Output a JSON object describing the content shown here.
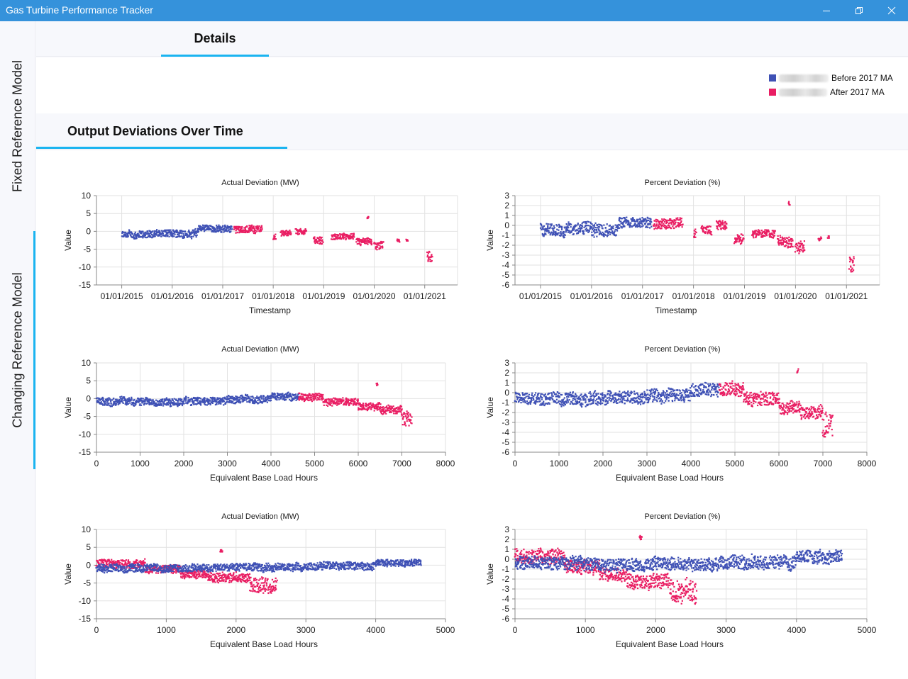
{
  "window": {
    "title": "Gas Turbine Performance Tracker",
    "controls": [
      "minimize",
      "restore",
      "close"
    ]
  },
  "left_nav": {
    "items": [
      {
        "label": "Fixed Reference Model",
        "selected": false
      },
      {
        "label": "Changing Reference Model",
        "selected": true
      }
    ]
  },
  "top_tabs": [
    {
      "label": "Details",
      "selected": true
    }
  ],
  "legend": {
    "items": [
      {
        "label": "Before 2017 MA",
        "color": "#3f51b5",
        "name_redacted": true
      },
      {
        "label": "After 2017 MA",
        "color": "#e91e63",
        "name_redacted": true
      }
    ]
  },
  "section": {
    "title": "Output Deviations Over Time"
  },
  "colors": {
    "before": "#3f51b5",
    "after": "#e91e63",
    "accent": "#1ab4f0",
    "titlebar": "#3592db"
  },
  "chart_data": [
    {
      "id": "actual-time",
      "type": "scatter",
      "title": "Actual Deviation (MW)",
      "xlabel": "Timestamp",
      "ylabel": "Value",
      "x_kind": "date",
      "xlim": [
        2014.5,
        2021.65
      ],
      "ylim": [
        -15,
        10
      ],
      "yticks": [
        10,
        5,
        0,
        -5,
        -10,
        -15
      ],
      "xticks": [
        2015,
        2016,
        2017,
        2018,
        2019,
        2020,
        2021
      ],
      "xtick_labels": [
        "01/01/2015",
        "01/01/2016",
        "01/01/2017",
        "01/01/2018",
        "01/01/2019",
        "01/01/2020",
        "01/01/2021"
      ],
      "grid": true,
      "series": [
        {
          "name": "Before 2017 MA",
          "color": "#3f51b5",
          "segments": [
            {
              "x0": 2015.0,
              "x1": 2015.5,
              "mid": -1.0,
              "spread": 2.0
            },
            {
              "x0": 2015.5,
              "x1": 2016.0,
              "mid": -0.6,
              "spread": 2.0
            },
            {
              "x0": 2016.0,
              "x1": 2016.5,
              "mid": -0.6,
              "spread": 2.2
            },
            {
              "x0": 2016.5,
              "x1": 2017.18,
              "mid": 0.8,
              "spread": 1.8
            }
          ]
        },
        {
          "name": "After 2017 MA",
          "color": "#e91e63",
          "segments": [
            {
              "x0": 2017.22,
              "x1": 2017.78,
              "mid": 0.6,
              "spread": 1.8
            },
            {
              "x0": 2018.0,
              "x1": 2018.05,
              "mid": -1.5,
              "spread": 1.8
            },
            {
              "x0": 2018.15,
              "x1": 2018.35,
              "mid": -0.6,
              "spread": 1.5
            },
            {
              "x0": 2018.45,
              "x1": 2018.65,
              "mid": 0.0,
              "spread": 1.5
            },
            {
              "x0": 2018.8,
              "x1": 2018.98,
              "mid": -2.5,
              "spread": 1.8
            },
            {
              "x0": 2019.15,
              "x1": 2019.6,
              "mid": -1.5,
              "spread": 1.5
            },
            {
              "x0": 2019.65,
              "x1": 2019.95,
              "mid": -3.0,
              "spread": 1.8
            },
            {
              "x0": 2020.0,
              "x1": 2020.18,
              "mid": -4.0,
              "spread": 2.0
            },
            {
              "x0": 2020.45,
              "x1": 2020.5,
              "mid": -2.6,
              "spread": 0.8
            },
            {
              "x0": 2020.63,
              "x1": 2020.66,
              "mid": -2.5,
              "spread": 0.5
            },
            {
              "x0": 2021.05,
              "x1": 2021.15,
              "mid": -7.0,
              "spread": 3.0
            },
            {
              "x0": 2019.86,
              "x1": 2019.88,
              "mid": 4.0,
              "spread": 0.8
            }
          ]
        }
      ]
    },
    {
      "id": "percent-time",
      "type": "scatter",
      "title": "Percent Deviation (%)",
      "xlabel": "Timestamp",
      "ylabel": "Value",
      "x_kind": "date",
      "xlim": [
        2014.5,
        2021.65
      ],
      "ylim": [
        -6,
        3
      ],
      "yticks": [
        3,
        2,
        1,
        0,
        -1,
        -2,
        -3,
        -4,
        -5,
        -6
      ],
      "xticks": [
        2015,
        2016,
        2017,
        2018,
        2019,
        2020,
        2021
      ],
      "xtick_labels": [
        "01/01/2015",
        "01/01/2016",
        "01/01/2017",
        "01/01/2018",
        "01/01/2019",
        "01/01/2020",
        "01/01/2021"
      ],
      "grid": true,
      "series": [
        {
          "name": "Before 2017 MA",
          "color": "#3f51b5",
          "segments": [
            {
              "x0": 2015.0,
              "x1": 2015.5,
              "mid": -0.5,
              "spread": 1.2
            },
            {
              "x0": 2015.5,
              "x1": 2016.0,
              "mid": -0.3,
              "spread": 1.2
            },
            {
              "x0": 2016.0,
              "x1": 2016.5,
              "mid": -0.5,
              "spread": 1.3
            },
            {
              "x0": 2016.5,
              "x1": 2017.18,
              "mid": 0.3,
              "spread": 1.0
            }
          ]
        },
        {
          "name": "After 2017 MA",
          "color": "#e91e63",
          "segments": [
            {
              "x0": 2017.22,
              "x1": 2017.78,
              "mid": 0.2,
              "spread": 1.0
            },
            {
              "x0": 2018.0,
              "x1": 2018.05,
              "mid": -0.8,
              "spread": 0.9
            },
            {
              "x0": 2018.15,
              "x1": 2018.35,
              "mid": -0.4,
              "spread": 0.9
            },
            {
              "x0": 2018.45,
              "x1": 2018.65,
              "mid": 0.0,
              "spread": 0.9
            },
            {
              "x0": 2018.8,
              "x1": 2018.98,
              "mid": -1.3,
              "spread": 1.0
            },
            {
              "x0": 2019.15,
              "x1": 2019.6,
              "mid": -0.8,
              "spread": 0.8
            },
            {
              "x0": 2019.65,
              "x1": 2019.95,
              "mid": -1.6,
              "spread": 1.0
            },
            {
              "x0": 2020.0,
              "x1": 2020.18,
              "mid": -2.2,
              "spread": 1.2
            },
            {
              "x0": 2020.45,
              "x1": 2020.5,
              "mid": -1.3,
              "spread": 0.4
            },
            {
              "x0": 2020.63,
              "x1": 2020.66,
              "mid": -1.2,
              "spread": 0.3
            },
            {
              "x0": 2021.05,
              "x1": 2021.15,
              "mid": -4.0,
              "spread": 1.6
            },
            {
              "x0": 2019.86,
              "x1": 2019.88,
              "mid": 2.2,
              "spread": 0.4
            }
          ]
        }
      ]
    },
    {
      "id": "actual-ebh-combined",
      "type": "scatter",
      "title": "Actual Deviation (MW)",
      "xlabel": "Equivalent Base Load Hours",
      "ylabel": "Value",
      "x_kind": "number",
      "xlim": [
        0,
        8000
      ],
      "ylim": [
        -15,
        10
      ],
      "yticks": [
        10,
        5,
        0,
        -5,
        -10,
        -15
      ],
      "xticks": [
        0,
        1000,
        2000,
        3000,
        4000,
        5000,
        6000,
        7000,
        8000
      ],
      "xtick_labels": [
        "0",
        "1000",
        "2000",
        "3000",
        "4000",
        "5000",
        "6000",
        "7000",
        "8000"
      ],
      "grid": true,
      "series": [
        {
          "name": "Before 2017 MA",
          "color": "#3f51b5",
          "segments": [
            {
              "x0": 0,
              "x1": 1000,
              "mid": -0.8,
              "spread": 2.0
            },
            {
              "x0": 1000,
              "x1": 2000,
              "mid": -0.8,
              "spread": 2.0
            },
            {
              "x0": 2000,
              "x1": 3000,
              "mid": -0.6,
              "spread": 2.0
            },
            {
              "x0": 3000,
              "x1": 4000,
              "mid": -0.2,
              "spread": 2.0
            },
            {
              "x0": 4000,
              "x1": 4640,
              "mid": 0.6,
              "spread": 1.8
            }
          ]
        },
        {
          "name": "After 2017 MA",
          "color": "#e91e63",
          "segments": [
            {
              "x0": 4640,
              "x1": 5200,
              "mid": 0.5,
              "spread": 2.0
            },
            {
              "x0": 5200,
              "x1": 6000,
              "mid": -0.8,
              "spread": 2.0
            },
            {
              "x0": 6000,
              "x1": 6500,
              "mid": -2.2,
              "spread": 2.0
            },
            {
              "x0": 6500,
              "x1": 7000,
              "mid": -3.0,
              "spread": 2.0
            },
            {
              "x0": 7000,
              "x1": 7220,
              "mid": -5.5,
              "spread": 4.0
            },
            {
              "x0": 6410,
              "x1": 6440,
              "mid": 4.0,
              "spread": 0.8
            }
          ]
        }
      ]
    },
    {
      "id": "percent-ebh-combined",
      "type": "scatter",
      "title": "Percent Deviation (%)",
      "xlabel": "Equivalent Base Load Hours",
      "ylabel": "Value",
      "x_kind": "number",
      "xlim": [
        0,
        8000
      ],
      "ylim": [
        -6,
        3
      ],
      "yticks": [
        3,
        2,
        1,
        0,
        -1,
        -2,
        -3,
        -4,
        -5,
        -6
      ],
      "xticks": [
        0,
        1000,
        2000,
        3000,
        4000,
        5000,
        6000,
        7000,
        8000
      ],
      "xtick_labels": [
        "0",
        "1000",
        "2000",
        "3000",
        "4000",
        "5000",
        "6000",
        "7000",
        "8000"
      ],
      "grid": true,
      "series": [
        {
          "name": "Before 2017 MA",
          "color": "#3f51b5",
          "segments": [
            {
              "x0": 0,
              "x1": 1000,
              "mid": -0.5,
              "spread": 1.2
            },
            {
              "x0": 1000,
              "x1": 2000,
              "mid": -0.6,
              "spread": 1.2
            },
            {
              "x0": 2000,
              "x1": 3000,
              "mid": -0.5,
              "spread": 1.2
            },
            {
              "x0": 3000,
              "x1": 4000,
              "mid": -0.3,
              "spread": 1.3
            },
            {
              "x0": 4000,
              "x1": 4640,
              "mid": 0.3,
              "spread": 1.2
            }
          ]
        },
        {
          "name": "After 2017 MA",
          "color": "#e91e63",
          "segments": [
            {
              "x0": 4640,
              "x1": 5200,
              "mid": 0.3,
              "spread": 1.3
            },
            {
              "x0": 5200,
              "x1": 6000,
              "mid": -0.6,
              "spread": 1.3
            },
            {
              "x0": 6000,
              "x1": 6500,
              "mid": -1.5,
              "spread": 1.2
            },
            {
              "x0": 6500,
              "x1": 7000,
              "mid": -2.0,
              "spread": 1.2
            },
            {
              "x0": 7000,
              "x1": 7220,
              "mid": -3.3,
              "spread": 2.2
            },
            {
              "x0": 6410,
              "x1": 6440,
              "mid": 2.2,
              "spread": 0.4
            }
          ]
        }
      ]
    },
    {
      "id": "actual-ebh-overlay",
      "type": "scatter",
      "title": "Actual Deviation (MW)",
      "xlabel": "Equivalent Base Load Hours",
      "ylabel": "Value",
      "x_kind": "number",
      "xlim": [
        0,
        5000
      ],
      "ylim": [
        -15,
        10
      ],
      "yticks": [
        10,
        5,
        0,
        -5,
        -10,
        -15
      ],
      "xticks": [
        0,
        1000,
        2000,
        3000,
        4000,
        5000
      ],
      "xtick_labels": [
        "0",
        "1000",
        "2000",
        "3000",
        "4000",
        "5000"
      ],
      "grid": true,
      "series": [
        {
          "name": "Before 2017 MA",
          "color": "#3f51b5",
          "segments": [
            {
              "x0": 0,
              "x1": 1000,
              "mid": -0.8,
              "spread": 2.0
            },
            {
              "x0": 1000,
              "x1": 2000,
              "mid": -0.8,
              "spread": 2.0
            },
            {
              "x0": 2000,
              "x1": 3000,
              "mid": -0.6,
              "spread": 2.0
            },
            {
              "x0": 3000,
              "x1": 4000,
              "mid": -0.2,
              "spread": 2.0
            },
            {
              "x0": 4000,
              "x1": 4650,
              "mid": 0.6,
              "spread": 1.8
            }
          ]
        },
        {
          "name": "After 2017 MA",
          "color": "#e91e63",
          "segments": [
            {
              "x0": 0,
              "x1": 700,
              "mid": 0.5,
              "spread": 2.2
            },
            {
              "x0": 700,
              "x1": 1200,
              "mid": -1.0,
              "spread": 2.2
            },
            {
              "x0": 1200,
              "x1": 1600,
              "mid": -2.5,
              "spread": 2.2
            },
            {
              "x0": 1600,
              "x1": 2200,
              "mid": -3.5,
              "spread": 2.4
            },
            {
              "x0": 2200,
              "x1": 2580,
              "mid": -5.5,
              "spread": 4.0
            },
            {
              "x0": 1770,
              "x1": 1800,
              "mid": 4.0,
              "spread": 0.8
            }
          ]
        }
      ]
    },
    {
      "id": "percent-ebh-overlay",
      "type": "scatter",
      "title": "Percent Deviation (%)",
      "xlabel": "Equivalent Base Load Hours",
      "ylabel": "Value",
      "x_kind": "number",
      "xlim": [
        0,
        5000
      ],
      "ylim": [
        -6,
        3
      ],
      "yticks": [
        3,
        2,
        1,
        0,
        -1,
        -2,
        -3,
        -4,
        -5,
        -6
      ],
      "xticks": [
        0,
        1000,
        2000,
        3000,
        4000,
        5000
      ],
      "xtick_labels": [
        "0",
        "1000",
        "2000",
        "3000",
        "4000",
        "5000"
      ],
      "grid": true,
      "series": [
        {
          "name": "Before 2017 MA",
          "color": "#3f51b5",
          "segments": [
            {
              "x0": 0,
              "x1": 1000,
              "mid": -0.4,
              "spread": 1.2
            },
            {
              "x0": 1000,
              "x1": 2000,
              "mid": -0.5,
              "spread": 1.2
            },
            {
              "x0": 2000,
              "x1": 3000,
              "mid": -0.5,
              "spread": 1.2
            },
            {
              "x0": 3000,
              "x1": 4000,
              "mid": -0.3,
              "spread": 1.3
            },
            {
              "x0": 4000,
              "x1": 4650,
              "mid": 0.3,
              "spread": 1.2
            }
          ]
        },
        {
          "name": "After 2017 MA",
          "color": "#e91e63",
          "segments": [
            {
              "x0": 0,
              "x1": 700,
              "mid": 0.3,
              "spread": 1.4
            },
            {
              "x0": 700,
              "x1": 1200,
              "mid": -0.8,
              "spread": 1.3
            },
            {
              "x0": 1200,
              "x1": 1600,
              "mid": -1.5,
              "spread": 1.3
            },
            {
              "x0": 1600,
              "x1": 2200,
              "mid": -2.2,
              "spread": 1.4
            },
            {
              "x0": 2200,
              "x1": 2580,
              "mid": -3.3,
              "spread": 2.2
            },
            {
              "x0": 1770,
              "x1": 1800,
              "mid": 2.2,
              "spread": 0.4
            }
          ]
        }
      ]
    }
  ]
}
